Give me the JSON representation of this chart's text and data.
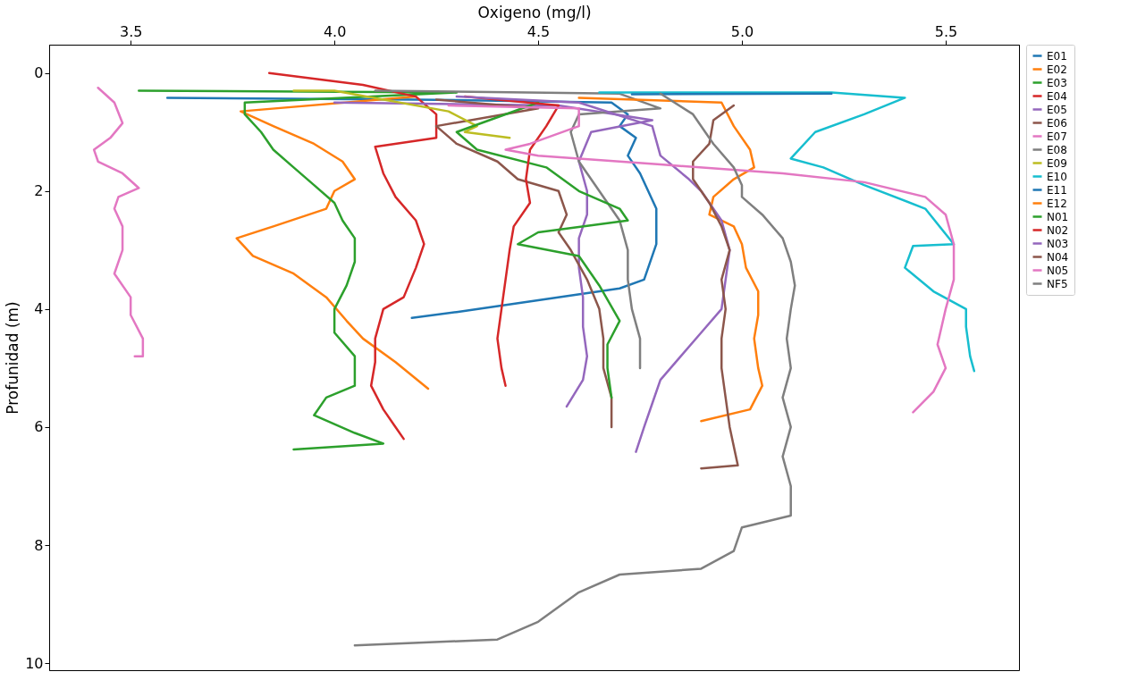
{
  "chart_data": {
    "type": "line",
    "xlabel": "Oxigeno (mg/l)",
    "ylabel": "Profunidad (m)",
    "xlim": [
      3.3,
      5.68
    ],
    "ylim": [
      10.12,
      -0.48
    ],
    "xticks": [
      3.5,
      {
        "value": 4,
        "label": "4.0"
      },
      4.5,
      {
        "value": 5,
        "label": "5.0"
      },
      5.5
    ],
    "yticks": [
      {
        "value": 0,
        "label": "0"
      },
      {
        "value": 2,
        "label": "2"
      },
      {
        "value": 4,
        "label": "4"
      },
      {
        "value": 6,
        "label": "6"
      },
      {
        "value": 8,
        "label": "8"
      },
      {
        "value": 10,
        "label": "10"
      }
    ],
    "grid": false,
    "legend": "right",
    "marker": "none",
    "line_style": "solid",
    "series": [
      {
        "name": "E01",
        "color": "#1f77b4",
        "x": [
          3.59,
          4.2,
          4.68,
          4.72,
          4.7,
          4.74,
          4.72,
          4.75,
          4.77,
          4.79,
          4.79,
          4.76,
          4.7,
          4.5,
          4.3,
          4.19
        ],
        "values": [
          0.42,
          0.45,
          0.5,
          0.7,
          0.9,
          1.1,
          1.4,
          1.7,
          2.0,
          2.3,
          2.9,
          3.5,
          3.65,
          3.85,
          4.05,
          4.15
        ]
      },
      {
        "name": "E02",
        "color": "#ff7f0e",
        "x": [
          4.2,
          3.77,
          3.85,
          3.95,
          4.02,
          4.05,
          4.0,
          3.98,
          3.85,
          3.76,
          3.8,
          3.9,
          3.98,
          4.03,
          4.07,
          4.15,
          4.23
        ],
        "values": [
          0.4,
          0.65,
          0.9,
          1.2,
          1.5,
          1.8,
          2.0,
          2.3,
          2.6,
          2.8,
          3.1,
          3.4,
          3.8,
          4.2,
          4.5,
          4.9,
          5.35
        ]
      },
      {
        "name": "E03",
        "color": "#2ca02c",
        "x": [
          3.52,
          4.3,
          3.78,
          3.78,
          3.82,
          3.85,
          3.9,
          3.95,
          4.0,
          4.02,
          4.05,
          4.05,
          4.03,
          4.0,
          4.0,
          4.05,
          4.05,
          3.98,
          3.95,
          4.05,
          4.12,
          3.9
        ],
        "values": [
          0.3,
          0.33,
          0.5,
          0.7,
          1.0,
          1.3,
          1.6,
          1.9,
          2.2,
          2.5,
          2.8,
          3.2,
          3.6,
          4.0,
          4.4,
          4.8,
          5.3,
          5.5,
          5.8,
          6.1,
          6.28,
          6.38
        ]
      },
      {
        "name": "E04",
        "color": "#d62728",
        "x": [
          3.84,
          4.07,
          4.2,
          4.25,
          4.25,
          4.1,
          4.12,
          4.15,
          4.2,
          4.22,
          4.2,
          4.17,
          4.12,
          4.1,
          4.1,
          4.09,
          4.12,
          4.15,
          4.17
        ],
        "values": [
          0.0,
          0.2,
          0.4,
          0.7,
          1.1,
          1.25,
          1.7,
          2.1,
          2.5,
          2.9,
          3.3,
          3.8,
          4.0,
          4.5,
          4.9,
          5.3,
          5.7,
          6.0,
          6.2
        ]
      },
      {
        "name": "E05",
        "color": "#9467bd",
        "x": [
          4.0,
          4.55,
          4.78,
          4.63,
          4.6,
          4.62,
          4.62,
          4.6,
          4.6,
          4.61,
          4.61,
          4.62,
          4.61,
          4.57
        ],
        "values": [
          0.5,
          0.55,
          0.8,
          1.0,
          1.5,
          2.0,
          2.4,
          2.8,
          3.3,
          3.8,
          4.3,
          4.8,
          5.2,
          5.65
        ]
      },
      {
        "name": "E06",
        "color": "#8c564b",
        "x": [
          4.25,
          4.5,
          4.25,
          4.3,
          4.4,
          4.45,
          4.55,
          4.57,
          4.55,
          4.58,
          4.62,
          4.65,
          4.66,
          4.66,
          4.68,
          4.68
        ],
        "values": [
          0.45,
          0.6,
          0.9,
          1.2,
          1.5,
          1.8,
          2.0,
          2.4,
          2.7,
          3.0,
          3.5,
          4.0,
          4.5,
          5.0,
          5.5,
          6.0
        ]
      },
      {
        "name": "E07",
        "color": "#e377c2",
        "x": [
          3.42,
          3.46,
          3.48,
          3.45,
          3.41,
          3.42,
          3.48,
          3.52,
          3.47,
          3.46,
          3.48,
          3.48,
          3.46,
          3.5,
          3.5,
          3.53,
          3.53,
          3.51
        ],
        "values": [
          0.25,
          0.5,
          0.85,
          1.1,
          1.3,
          1.5,
          1.7,
          1.95,
          2.1,
          2.3,
          2.6,
          3.0,
          3.4,
          3.8,
          4.1,
          4.5,
          4.8,
          4.8
        ]
      },
      {
        "name": "E08",
        "color": "#7f7f7f",
        "x": [
          4.1,
          4.7,
          4.8,
          4.6,
          4.58,
          4.6,
          4.65,
          4.7,
          4.72,
          4.72,
          4.73,
          4.75,
          4.75
        ],
        "values": [
          0.3,
          0.35,
          0.6,
          0.7,
          1.0,
          1.5,
          2.0,
          2.5,
          3.0,
          3.5,
          4.0,
          4.5,
          5.0
        ]
      },
      {
        "name": "E09",
        "color": "#bcbd22",
        "x": [
          3.9,
          4.0,
          4.28,
          4.35,
          4.32,
          4.43
        ],
        "values": [
          0.3,
          0.3,
          0.65,
          0.9,
          1.0,
          1.1
        ]
      },
      {
        "name": "E10",
        "color": "#17becf",
        "x": [
          4.65,
          5.22,
          5.4,
          5.3,
          5.18,
          5.12,
          5.2,
          5.3,
          5.45,
          5.52,
          5.42,
          5.4,
          5.47,
          5.55,
          5.55,
          5.56,
          5.57
        ],
        "values": [
          0.33,
          0.33,
          0.42,
          0.7,
          1.0,
          1.45,
          1.6,
          1.9,
          2.3,
          2.9,
          2.93,
          3.3,
          3.7,
          4.0,
          4.3,
          4.8,
          5.05
        ]
      },
      {
        "name": "E11",
        "color": "#1f77b4",
        "x": [
          4.73,
          5.22
        ],
        "values": [
          0.36,
          0.35
        ]
      },
      {
        "name": "E12",
        "color": "#ff7f0e",
        "x": [
          4.6,
          4.95,
          4.98,
          5.02,
          5.03,
          4.98,
          4.93,
          4.92,
          4.98,
          5.0,
          5.01,
          5.04,
          5.04,
          5.03,
          5.04,
          5.05,
          5.02,
          4.9
        ],
        "values": [
          0.42,
          0.5,
          0.9,
          1.3,
          1.6,
          1.8,
          2.1,
          2.4,
          2.6,
          2.9,
          3.3,
          3.7,
          4.1,
          4.5,
          5.0,
          5.3,
          5.7,
          5.9
        ]
      },
      {
        "name": "N01",
        "color": "#2ca02c",
        "x": [
          4.5,
          4.3,
          4.35,
          4.52,
          4.6,
          4.7,
          4.72,
          4.5,
          4.45,
          4.6,
          4.65,
          4.7,
          4.67,
          4.67,
          4.68
        ],
        "values": [
          0.5,
          1.0,
          1.3,
          1.6,
          2.0,
          2.3,
          2.5,
          2.7,
          2.9,
          3.1,
          3.6,
          4.2,
          4.6,
          5.0,
          5.5
        ]
      },
      {
        "name": "N02",
        "color": "#d62728",
        "x": [
          4.32,
          4.55,
          4.52,
          4.48,
          4.47,
          4.48,
          4.44,
          4.43,
          4.42,
          4.41,
          4.4,
          4.41,
          4.42
        ],
        "values": [
          0.4,
          0.55,
          0.9,
          1.3,
          1.8,
          2.2,
          2.6,
          3.0,
          3.5,
          4.0,
          4.5,
          5.0,
          5.3
        ]
      },
      {
        "name": "N03",
        "color": "#9467bd",
        "x": [
          4.3,
          4.6,
          4.78,
          4.8,
          4.87,
          4.9,
          4.95,
          4.97,
          4.96,
          4.95,
          4.9,
          4.85,
          4.8,
          4.78,
          4.76,
          4.74
        ],
        "values": [
          0.4,
          0.5,
          0.9,
          1.4,
          1.8,
          2.0,
          2.5,
          3.0,
          3.5,
          4.0,
          4.4,
          4.8,
          5.2,
          5.6,
          6.0,
          6.42
        ]
      },
      {
        "name": "N04",
        "color": "#8c564b",
        "x": [
          4.98,
          4.93,
          4.92,
          4.88,
          4.88,
          4.92,
          4.95,
          4.97,
          4.95,
          4.96,
          4.95,
          4.95,
          4.96,
          4.97,
          4.99,
          4.9
        ],
        "values": [
          0.55,
          0.8,
          1.2,
          1.5,
          1.8,
          2.2,
          2.6,
          3.0,
          3.5,
          4.0,
          4.5,
          5.0,
          5.5,
          6.0,
          6.65,
          6.7
        ]
      },
      {
        "name": "N05",
        "color": "#e377c2",
        "x": [
          4.28,
          4.6,
          4.6,
          4.48,
          4.42,
          4.5,
          4.8,
          5.1,
          5.3,
          5.45,
          5.5,
          5.52,
          5.52,
          5.5,
          5.48,
          5.5,
          5.47,
          5.42
        ],
        "values": [
          0.55,
          0.6,
          0.9,
          1.2,
          1.3,
          1.4,
          1.55,
          1.7,
          1.85,
          2.1,
          2.4,
          2.9,
          3.5,
          4.0,
          4.6,
          5.0,
          5.4,
          5.75
        ]
      },
      {
        "name": "NF5",
        "color": "#7f7f7f",
        "x": [
          4.8,
          4.88,
          4.93,
          4.98,
          5.0,
          5.0,
          5.05,
          5.1,
          5.12,
          5.13,
          5.12,
          5.11,
          5.12,
          5.1,
          5.12,
          5.1,
          5.12,
          5.12,
          5.0,
          4.98,
          4.9,
          4.7,
          4.6,
          4.5,
          4.4,
          4.05
        ],
        "values": [
          0.35,
          0.7,
          1.2,
          1.6,
          1.9,
          2.1,
          2.4,
          2.8,
          3.2,
          3.6,
          4.0,
          4.5,
          5.0,
          5.5,
          6.0,
          6.5,
          7.0,
          7.5,
          7.7,
          8.1,
          8.4,
          8.5,
          8.8,
          9.3,
          9.6,
          9.7
        ]
      }
    ]
  }
}
